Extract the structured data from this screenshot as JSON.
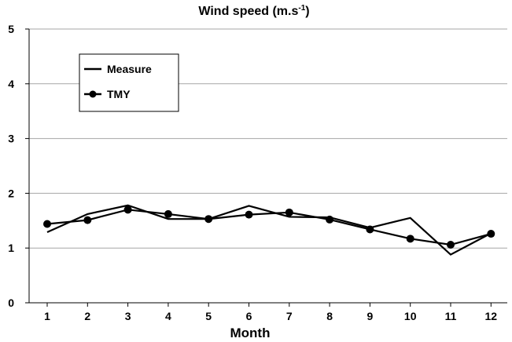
{
  "chart_data": {
    "type": "line",
    "title": "Wind speed (m.s",
    "title_sup": "-1",
    "title_close": ")",
    "xlabel": "Month",
    "ylabel": "",
    "ylim": [
      0,
      5
    ],
    "yticks": [
      0,
      1,
      2,
      3,
      4,
      5
    ],
    "grid": true,
    "legend_position": "top-left",
    "categories": [
      "1",
      "2",
      "3",
      "4",
      "5",
      "6",
      "7",
      "8",
      "9",
      "10",
      "11",
      "12"
    ],
    "series": [
      {
        "name": "Measure",
        "marker": "none",
        "color": "#000000",
        "values": [
          1.29,
          1.62,
          1.78,
          1.53,
          1.53,
          1.77,
          1.57,
          1.56,
          1.37,
          1.55,
          0.88,
          1.27
        ]
      },
      {
        "name": "TMY",
        "marker": "circle",
        "color": "#000000",
        "values": [
          1.44,
          1.51,
          1.7,
          1.62,
          1.53,
          1.61,
          1.65,
          1.52,
          1.34,
          1.17,
          1.06,
          1.26
        ]
      }
    ]
  }
}
